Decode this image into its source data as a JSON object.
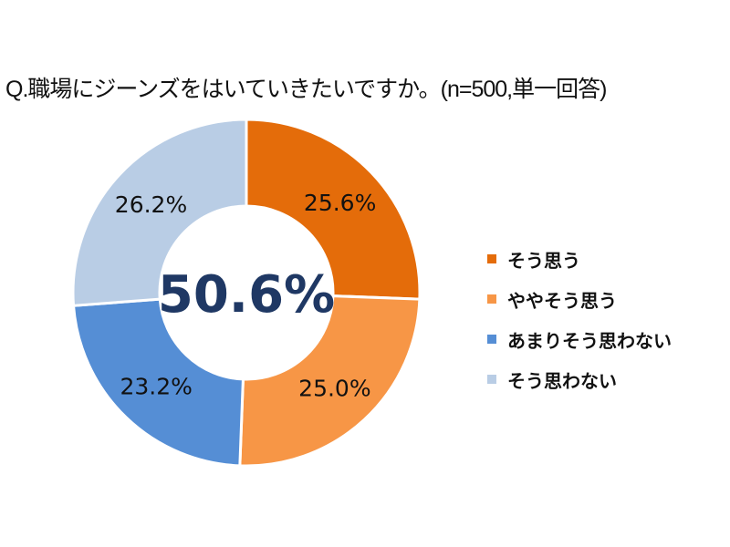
{
  "chart_data": {
    "type": "pie",
    "variant": "donut",
    "title": "Q.職場にジーンズをはいていきたいですか。(n=500,単一回答)",
    "center_label": "50.6%",
    "categories": [
      "そう思う",
      "ややそう思う",
      "あまりそう思わない",
      "そう思わない"
    ],
    "values": [
      25.6,
      25.0,
      23.2,
      26.2
    ],
    "data_labels": [
      "25.6%",
      "25.0%",
      "23.2%",
      "26.2%"
    ],
    "colors": [
      "#E46C0A",
      "#F79646",
      "#558ED5",
      "#B9CDE5"
    ],
    "legend_position": "right"
  }
}
